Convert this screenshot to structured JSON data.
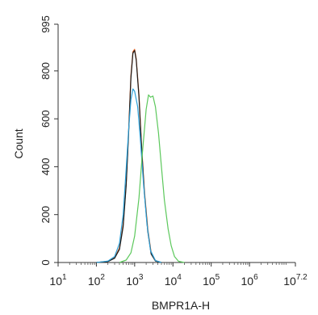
{
  "chart_data": {
    "type": "line",
    "xlabel": "BMPR1A-H",
    "ylabel": "Count",
    "x_scale": "log",
    "xlim": [
      10,
      15848932
    ],
    "ylim": [
      0,
      995
    ],
    "y_ticks": [
      {
        "value": 0,
        "label": "0"
      },
      {
        "value": 200,
        "label": "200"
      },
      {
        "value": 400,
        "label": "400"
      },
      {
        "value": 600,
        "label": "600"
      },
      {
        "value": 800,
        "label": "800"
      },
      {
        "value": 995,
        "label": "995"
      }
    ],
    "x_ticks": [
      {
        "value": 10,
        "base": "10",
        "exp": "1"
      },
      {
        "value": 100,
        "base": "10",
        "exp": "2"
      },
      {
        "value": 1000,
        "base": "10",
        "exp": "3"
      },
      {
        "value": 10000,
        "base": "10",
        "exp": "4"
      },
      {
        "value": 100000,
        "base": "10",
        "exp": "5"
      },
      {
        "value": 1000000,
        "base": "10",
        "exp": "6"
      },
      {
        "value": 15848932,
        "base": "10",
        "exp": "7.2"
      }
    ],
    "series": [
      {
        "color": "#e05a1a",
        "points": [
          [
            100,
            0
          ],
          [
            200,
            5
          ],
          [
            300,
            20
          ],
          [
            400,
            60
          ],
          [
            500,
            160
          ],
          [
            600,
            330
          ],
          [
            700,
            560
          ],
          [
            800,
            780
          ],
          [
            900,
            880
          ],
          [
            1000,
            890
          ],
          [
            1100,
            850
          ],
          [
            1300,
            700
          ],
          [
            1500,
            500
          ],
          [
            1800,
            300
          ],
          [
            2200,
            140
          ],
          [
            2700,
            40
          ],
          [
            3500,
            8
          ],
          [
            5000,
            0
          ]
        ]
      },
      {
        "color": "#1a1a1a",
        "points": [
          [
            100,
            0
          ],
          [
            200,
            4
          ],
          [
            300,
            18
          ],
          [
            400,
            55
          ],
          [
            500,
            150
          ],
          [
            600,
            320
          ],
          [
            700,
            550
          ],
          [
            800,
            770
          ],
          [
            900,
            875
          ],
          [
            1000,
            885
          ],
          [
            1100,
            845
          ],
          [
            1300,
            690
          ],
          [
            1500,
            490
          ],
          [
            1800,
            290
          ],
          [
            2200,
            130
          ],
          [
            2700,
            35
          ],
          [
            3500,
            6
          ],
          [
            5000,
            0
          ]
        ]
      },
      {
        "color": "#2a9fd8",
        "points": [
          [
            100,
            0
          ],
          [
            200,
            6
          ],
          [
            300,
            25
          ],
          [
            400,
            80
          ],
          [
            500,
            200
          ],
          [
            600,
            390
          ],
          [
            700,
            560
          ],
          [
            800,
            680
          ],
          [
            900,
            725
          ],
          [
            1000,
            715
          ],
          [
            1200,
            650
          ],
          [
            1400,
            520
          ],
          [
            1700,
            330
          ],
          [
            2100,
            160
          ],
          [
            2600,
            50
          ],
          [
            3500,
            8
          ],
          [
            5000,
            0
          ]
        ]
      },
      {
        "color": "#5cc85c",
        "points": [
          [
            400,
            0
          ],
          [
            600,
            10
          ],
          [
            800,
            40
          ],
          [
            1000,
            110
          ],
          [
            1300,
            270
          ],
          [
            1600,
            460
          ],
          [
            2000,
            640
          ],
          [
            2300,
            700
          ],
          [
            2600,
            690
          ],
          [
            3000,
            695
          ],
          [
            3500,
            650
          ],
          [
            4200,
            540
          ],
          [
            5000,
            400
          ],
          [
            6000,
            260
          ],
          [
            7500,
            140
          ],
          [
            9000,
            70
          ],
          [
            11000,
            25
          ],
          [
            14000,
            5
          ],
          [
            20000,
            0
          ]
        ]
      }
    ]
  }
}
